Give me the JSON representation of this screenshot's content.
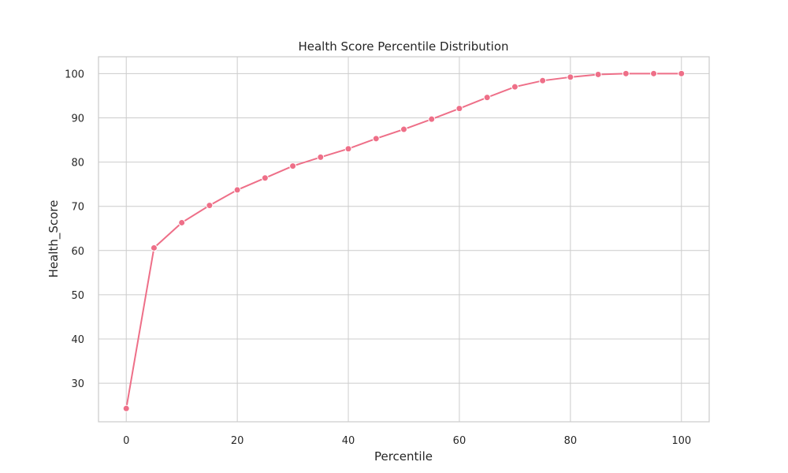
{
  "chart_data": {
    "type": "line",
    "title": "Health Score Percentile Distribution",
    "xlabel": "Percentile",
    "ylabel": "Health_Score",
    "xlim": [
      -5,
      105
    ],
    "ylim": [
      21.3,
      103.8
    ],
    "xticks": [
      0,
      20,
      40,
      60,
      80,
      100
    ],
    "yticks": [
      30,
      40,
      50,
      60,
      70,
      80,
      90,
      100
    ],
    "grid": true,
    "legend": "none",
    "series_color": "#ee6f88",
    "x": [
      0,
      5,
      10,
      15,
      20,
      25,
      30,
      35,
      40,
      45,
      50,
      55,
      60,
      65,
      70,
      75,
      80,
      85,
      90,
      95,
      100
    ],
    "y": [
      24.3,
      60.6,
      66.3,
      70.2,
      73.7,
      76.4,
      79.1,
      81.1,
      83.0,
      85.3,
      87.4,
      89.7,
      92.1,
      94.6,
      97.0,
      98.4,
      99.2,
      99.8,
      100.0,
      100.0,
      100.0
    ]
  }
}
